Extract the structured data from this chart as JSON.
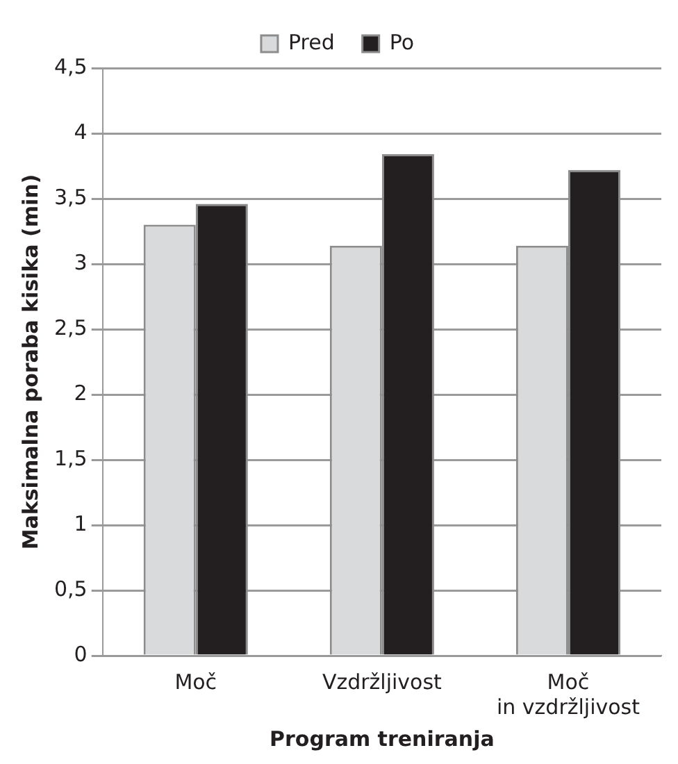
{
  "chart_data": {
    "type": "bar",
    "xlabel": "Program treniranja",
    "ylabel": "Maksimalna poraba kisika (min)",
    "categories": [
      "Moč",
      "Vzdržljivost",
      "Moč\nin vzdržljivost"
    ],
    "series": [
      {
        "name": "Pred",
        "color": "#d9dadc",
        "values": [
          3.3,
          3.14,
          3.14
        ]
      },
      {
        "name": "Po",
        "color": "#231f20",
        "values": [
          3.46,
          3.84,
          3.72
        ]
      }
    ],
    "ylim": [
      0,
      4.5
    ],
    "yticks": [
      0,
      {
        "value": 0.5,
        "label": "0,5"
      },
      1,
      {
        "value": 1.5,
        "label": "1,5"
      },
      2,
      {
        "value": 2.5,
        "label": "2,5"
      },
      3,
      {
        "value": 3.5,
        "label": "3,5"
      },
      4,
      {
        "value": 4.5,
        "label": "4,5"
      }
    ],
    "grid": "y",
    "legend": "top"
  }
}
